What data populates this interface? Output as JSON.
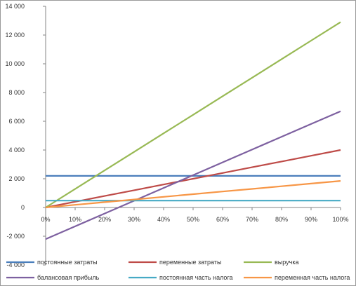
{
  "chart_data": {
    "type": "line",
    "title": "",
    "xlabel": "",
    "ylabel": "",
    "x": [
      "0%",
      "10%",
      "20%",
      "30%",
      "40%",
      "50%",
      "60%",
      "70%",
      "80%",
      "90%",
      "100%"
    ],
    "ylim": [
      -4000,
      14000
    ],
    "yticks": [
      -4000,
      -2000,
      0,
      2000,
      4000,
      6000,
      8000,
      10000,
      12000,
      14000
    ],
    "ytick_labels": [
      "-4 000",
      "-2 000",
      "0",
      "2 000",
      "4 000",
      "6 000",
      "8 000",
      "10 000",
      "12 000",
      "14 000"
    ],
    "grid": false,
    "legend_position": "bottom",
    "series": [
      {
        "name": "постоянные затраты",
        "color": "#4a7ebb",
        "values": [
          2200,
          2200,
          2200,
          2200,
          2200,
          2200,
          2200,
          2200,
          2200,
          2200,
          2200
        ]
      },
      {
        "name": "переменные затраты",
        "color": "#be4b48",
        "values": [
          0,
          400,
          800,
          1200,
          1600,
          2000,
          2400,
          2800,
          3200,
          3600,
          4000
        ]
      },
      {
        "name": "выручка",
        "color": "#98b954",
        "values": [
          0,
          1290,
          2580,
          3870,
          5160,
          6450,
          7740,
          9030,
          10320,
          11610,
          12900
        ]
      },
      {
        "name": "балансовая прибыль",
        "color": "#7d60a0",
        "values": [
          -2200,
          -1310,
          -420,
          470,
          1360,
          2250,
          3140,
          4030,
          4920,
          5810,
          6700
        ]
      },
      {
        "name": "постоянная часть налога",
        "color": "#46aac5",
        "values": [
          480,
          480,
          480,
          480,
          480,
          480,
          480,
          480,
          480,
          480,
          480
        ]
      },
      {
        "name": "переменная часть налога",
        "color": "#f79646",
        "values": [
          0,
          185,
          370,
          555,
          740,
          925,
          1110,
          1295,
          1480,
          1665,
          1850
        ]
      }
    ]
  }
}
